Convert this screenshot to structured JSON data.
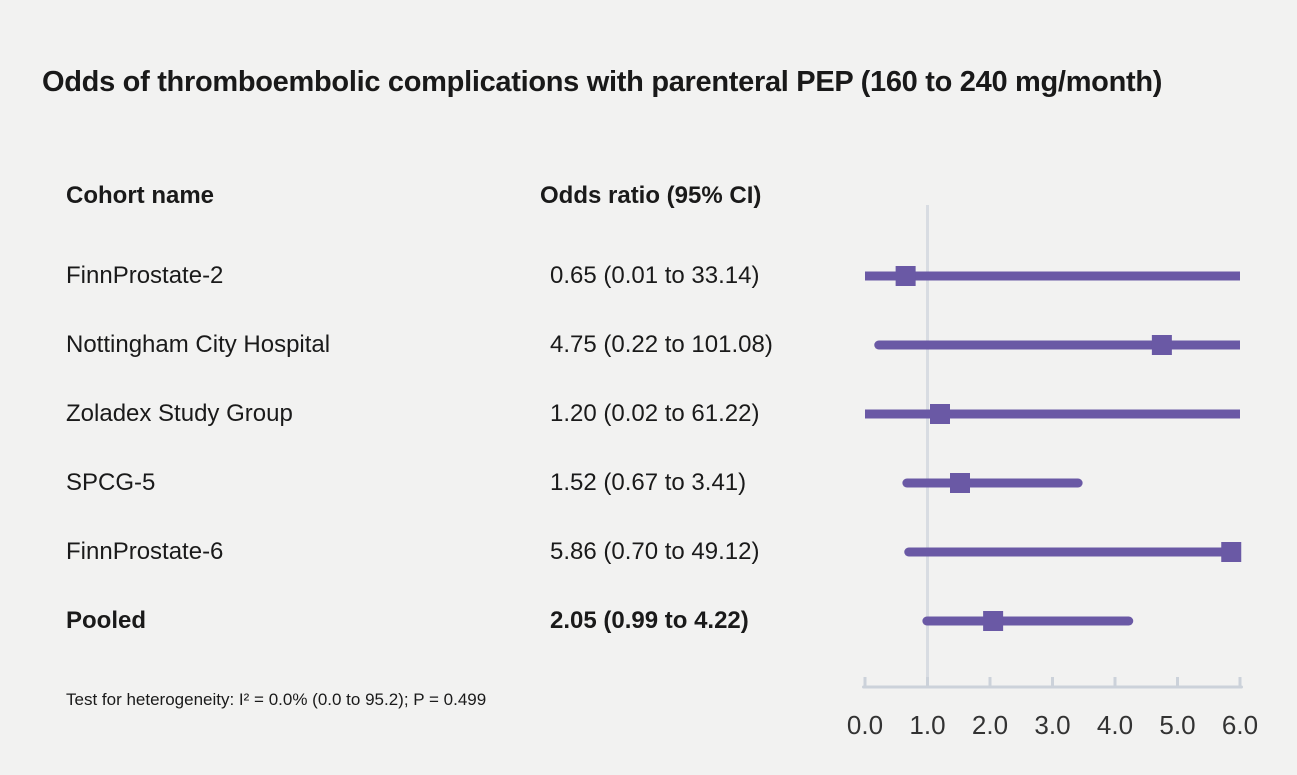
{
  "title": "Odds of thromboembolic complications with parenteral PEP (160 to 240 mg/month)",
  "table": {
    "col1_header": "Cohort name",
    "col2_header": "Odds ratio (95% CI)"
  },
  "footnote": "Test for heterogeneity: I² = 0.0% (0.0 to 95.2); P = 0.499",
  "colors": {
    "marker_purple": "#6a59a5",
    "reference_line": "#d8dce2",
    "axis": "#ccd2da",
    "background": "#f2f2f1",
    "text": "#1a1a1a"
  },
  "chart_data": {
    "type": "forest",
    "title": "Odds of thromboembolic complications with parenteral PEP (160 to 240 mg/month)",
    "columns": [
      "Cohort name",
      "Odds ratio (95% CI)"
    ],
    "rows": [
      {
        "label": "FinnProstate-2",
        "display": "0.65 (0.01 to 33.14)",
        "or": 0.65,
        "lo": 0.01,
        "hi": 33.14,
        "bold": false
      },
      {
        "label": "Nottingham City Hospital",
        "display": "4.75 (0.22 to 101.08)",
        "or": 4.75,
        "lo": 0.22,
        "hi": 101.08,
        "bold": false
      },
      {
        "label": "Zoladex Study Group",
        "display": "1.20 (0.02 to 61.22)",
        "or": 1.2,
        "lo": 0.02,
        "hi": 61.22,
        "bold": false
      },
      {
        "label": "SPCG-5",
        "display": "1.52 (0.67 to 3.41)",
        "or": 1.52,
        "lo": 0.67,
        "hi": 3.41,
        "bold": false
      },
      {
        "label": "FinnProstate-6",
        "display": "5.86 (0.70 to 49.12)",
        "or": 5.86,
        "lo": 0.7,
        "hi": 49.12,
        "bold": false
      },
      {
        "label": "Pooled",
        "display": "2.05 (0.99 to 4.22)",
        "or": 2.05,
        "lo": 0.99,
        "hi": 4.22,
        "bold": true
      }
    ],
    "x_axis": {
      "min": 0.0,
      "max": 6.0,
      "tick_labels": [
        "0.0",
        "1.0",
        "2.0",
        "3.0",
        "4.0",
        "5.0",
        "6.0"
      ],
      "reference_line": 1.0,
      "note": "upper CI limits beyond 6.0 are clipped at plot edge"
    },
    "legend_position": "none",
    "grid": false
  }
}
